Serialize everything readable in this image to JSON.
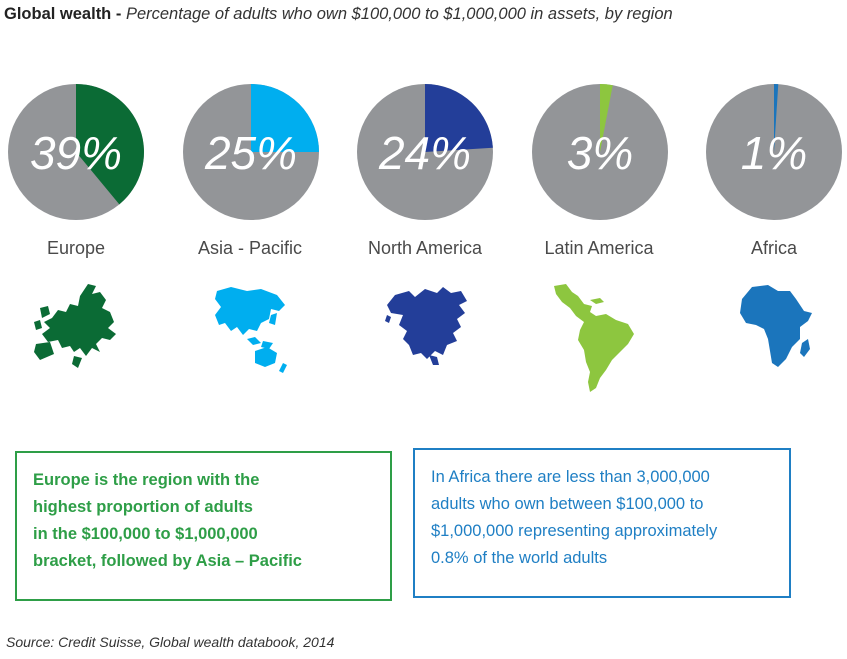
{
  "header": {
    "title_bold": "Global wealth",
    "separator": " - ",
    "subtitle": "Percentage of adults who own $100,000 to $1,000,000 in assets, by region"
  },
  "chart_data": {
    "type": "pie",
    "title": "Global wealth",
    "subtitle": "Percentage of adults who own $100,000 to $1,000,000 in assets, by region",
    "background_color": "#939598",
    "series": [
      {
        "region": "Europe",
        "value": 39,
        "label": "39%",
        "color": "#0b6b35"
      },
      {
        "region": "Asia - Pacific",
        "value": 25,
        "label": "25%",
        "color": "#00aeef"
      },
      {
        "region": "North America",
        "value": 24,
        "label": "24%",
        "color": "#233e99"
      },
      {
        "region": "Latin America",
        "value": 3,
        "label": "3%",
        "color": "#8dc63f"
      },
      {
        "region": "Africa",
        "value": 1,
        "label": "1%",
        "color": "#1b75bc"
      }
    ]
  },
  "callouts": {
    "europe_text": "Europe is the region with the highest proportion of adults in the $100,000 to $1,000,000 bracket, followed by Asia – Pacific",
    "europe_lines": [
      "Europe is the region with the",
      "highest proportion of adults",
      "in the $100,000 to $1,000,000",
      "bracket, followed by Asia – Pacific"
    ],
    "africa_lines": [
      "In Africa there are less than 3,000,000",
      "adults who own between $100,000 to",
      "$1,000,000 representing approximately",
      "0.8% of the world adults"
    ]
  },
  "footer": {
    "source": "Source: Credit Suisse, Global wealth databook, 2014"
  },
  "icons": [
    "europe-map-icon",
    "asia-pacific-map-icon",
    "north-america-map-icon",
    "latin-america-map-icon",
    "africa-map-icon"
  ]
}
